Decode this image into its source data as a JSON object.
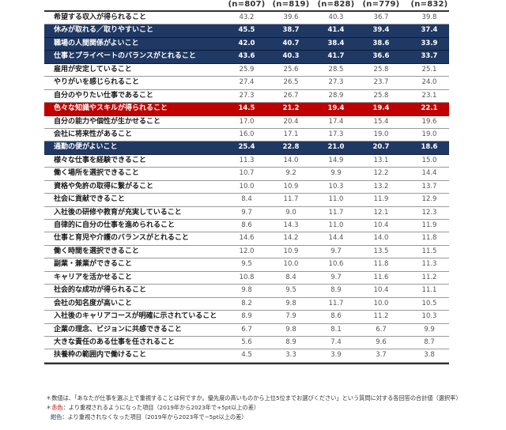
{
  "table": {
    "columns": [
      "(n=807)",
      "(n=819)",
      "(n=828)",
      "(n=779)",
      "(n=832)"
    ],
    "rows": [
      {
        "label": "希望する収入が得られること",
        "style": "normal",
        "values": [
          "43.2",
          "39.6",
          "40.3",
          "36.7",
          "39.8"
        ]
      },
      {
        "label": "休みが取れる／取りやすいこと",
        "style": "blue",
        "values": [
          "45.5",
          "38.7",
          "41.4",
          "39.4",
          "37.4"
        ]
      },
      {
        "label": "職場の人間関係がよいこと",
        "style": "blue",
        "values": [
          "42.0",
          "40.7",
          "38.4",
          "38.6",
          "33.9"
        ]
      },
      {
        "label": "仕事とプライベートのバランスがとれること",
        "style": "blue",
        "values": [
          "43.6",
          "40.3",
          "41.7",
          "36.6",
          "33.7"
        ]
      },
      {
        "label": "雇用が安定していること",
        "style": "normal",
        "values": [
          "25.9",
          "25.6",
          "28.5",
          "25.8",
          "25.1"
        ]
      },
      {
        "label": "やりがいを感じられること",
        "style": "normal",
        "values": [
          "27.4",
          "26.5",
          "27.3",
          "23.7",
          "24.0"
        ]
      },
      {
        "label": "自分のやりたい仕事であること",
        "style": "normal",
        "values": [
          "27.3",
          "26.7",
          "28.9",
          "25.8",
          "23.1"
        ]
      },
      {
        "label": "色々な知識やスキルが得られること",
        "style": "red",
        "values": [
          "14.5",
          "21.2",
          "19.4",
          "19.4",
          "22.1"
        ]
      },
      {
        "label": "自分の能力や個性が生かせること",
        "style": "normal",
        "values": [
          "17.0",
          "20.4",
          "17.4",
          "15.4",
          "19.6"
        ]
      },
      {
        "label": "会社に将来性があること",
        "style": "normal",
        "values": [
          "16.0",
          "17.1",
          "17.3",
          "19.0",
          "19.0"
        ]
      },
      {
        "label": "通勤の便がよいこと",
        "style": "blue",
        "values": [
          "25.4",
          "22.8",
          "21.0",
          "20.7",
          "18.6"
        ]
      },
      {
        "label": "様々な仕事を経験できること",
        "style": "normal",
        "values": [
          "11.3",
          "14.0",
          "14.9",
          "13.1",
          "15.0"
        ]
      },
      {
        "label": "働く場所を選択できること",
        "style": "normal",
        "values": [
          "10.7",
          "9.2",
          "9.9",
          "12.2",
          "14.4"
        ]
      },
      {
        "label": "資格や免許の取得に繋がること",
        "style": "normal",
        "values": [
          "10.0",
          "10.9",
          "10.3",
          "13.2",
          "13.7"
        ]
      },
      {
        "label": "社会に貢献できること",
        "style": "normal",
        "values": [
          "8.4",
          "11.7",
          "11.0",
          "11.9",
          "12.9"
        ]
      },
      {
        "label": "入社後の研修や教育が充実していること",
        "style": "normal",
        "values": [
          "9.7",
          "9.0",
          "11.7",
          "12.1",
          "12.3"
        ]
      },
      {
        "label": "自律的に自分の仕事を進められること",
        "style": "normal",
        "values": [
          "8.6",
          "14.3",
          "11.0",
          "10.4",
          "11.9"
        ]
      },
      {
        "label": "仕事と育児や介護のバランスがとれること",
        "style": "normal",
        "values": [
          "14.6",
          "14.2",
          "14.4",
          "14.0",
          "11.8"
        ]
      },
      {
        "label": "働く時間を選択できること",
        "style": "normal",
        "values": [
          "12.0",
          "10.9",
          "9.7",
          "13.5",
          "11.5"
        ]
      },
      {
        "label": "副業・兼業ができること",
        "style": "normal",
        "values": [
          "9.5",
          "10.0",
          "10.6",
          "11.8",
          "11.3"
        ]
      },
      {
        "label": "キャリアを活かせること",
        "style": "normal",
        "values": [
          "10.8",
          "8.4",
          "9.7",
          "11.6",
          "11.2"
        ]
      },
      {
        "label": "社会的な成功が得られること",
        "style": "normal",
        "values": [
          "9.8",
          "9.5",
          "8.9",
          "10.4",
          "11.1"
        ]
      },
      {
        "label": "会社の知名度が高いこと",
        "style": "normal",
        "values": [
          "8.2",
          "9.8",
          "11.7",
          "10.0",
          "10.5"
        ]
      },
      {
        "label": "入社後のキャリアコースが明確に示されていること",
        "style": "normal",
        "values": [
          "8.9",
          "7.9",
          "8.6",
          "11.2",
          "10.3"
        ]
      },
      {
        "label": "企業の理念、ビジョンに共感できること",
        "style": "normal",
        "values": [
          "6.7",
          "9.8",
          "8.1",
          "6.7",
          "9.9"
        ]
      },
      {
        "label": "大きな責任のある仕事を任されること",
        "style": "normal",
        "values": [
          "5.6",
          "8.9",
          "7.4",
          "9.6",
          "8.7"
        ]
      },
      {
        "label": "扶養枠の範囲内で働けること",
        "style": "normal",
        "values": [
          "4.5",
          "3.3",
          "3.9",
          "3.7",
          "3.8"
        ]
      }
    ]
  },
  "notes": {
    "line1": "＊数値は、「あなたが仕事を選ぶ上で重視することは何ですか。優先度の高いものから上位5位までお選びください」という質問に対する各回答の合計値（選択率）",
    "line2_prefix": "＊",
    "line2_color_word": "赤色",
    "line2_text": "：より重視されるようになった項目（2019年から2023年で+5pt以上の差）",
    "line3_color_word": "紺色",
    "line3_text": "：より重視されなくなった項目（2019年から2023年で−5pt以上の差）"
  },
  "colors": {
    "navy": "#1F3864",
    "red": "#C00000"
  }
}
